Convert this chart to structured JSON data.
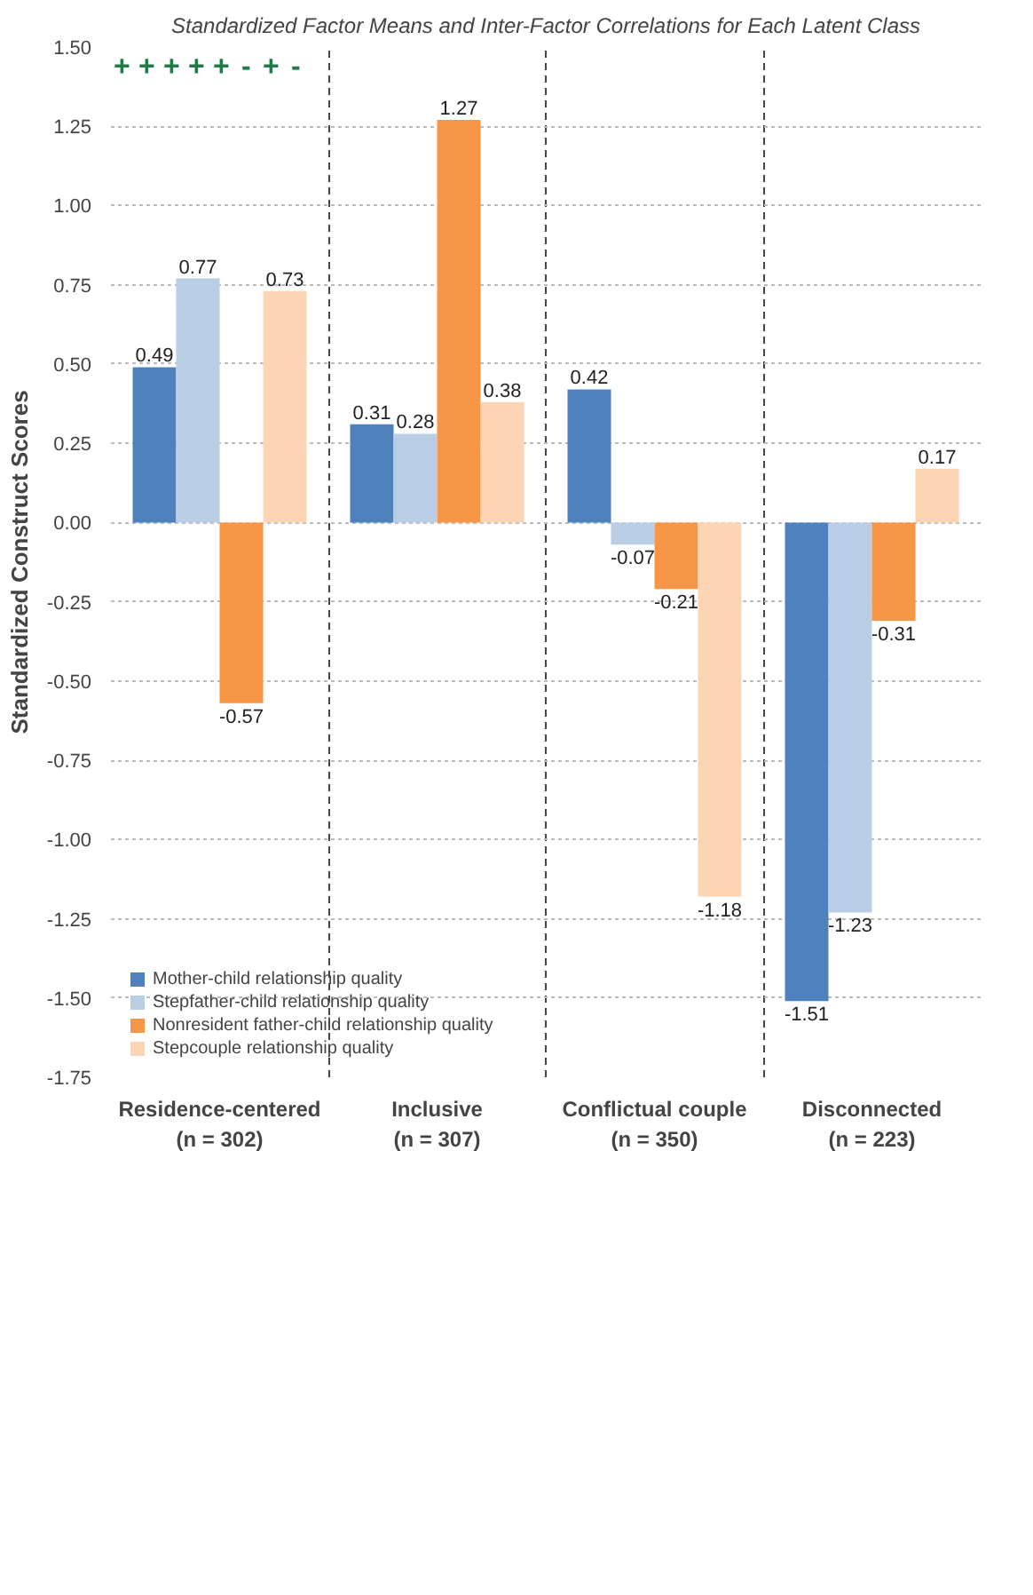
{
  "chart_data": {
    "type": "bar",
    "title": "Standardized Factor Means and Inter-Factor Correlations for Each Latent Class",
    "ylabel": "Standardized Construct Scores",
    "categories": [
      "Residence-centered (n = 302)",
      "Inclusive (n = 307)",
      "Conflictual couple (n = 350)",
      "Disconnected (n = 223)"
    ],
    "series": [
      {
        "name": "Mother-child relationship quality",
        "color": "#4f81bd",
        "values": [
          0.49,
          0.31,
          0.42,
          -1.51
        ]
      },
      {
        "name": "Stepfather-child relationship quality",
        "color": "#b9cde5",
        "values": [
          0.77,
          0.28,
          -0.07,
          -1.23
        ]
      },
      {
        "name": "Nonresident father-child relationship quality",
        "color": "#f79646",
        "values": [
          -0.57,
          1.27,
          -0.21,
          -0.31
        ]
      },
      {
        "name": "Stepcouple relationship quality",
        "color": "#fcd5b5",
        "values": [
          0.73,
          0.38,
          -1.18,
          0.17
        ]
      }
    ],
    "ylim": [
      -1.75,
      1.5
    ],
    "yticks": [
      {
        "value": -1.75,
        "label": "-1.75"
      },
      {
        "value": -1.5,
        "label": "-1.50"
      },
      {
        "value": -1.25,
        "label": "-1.25"
      },
      {
        "value": -1,
        "label": "-1.00"
      },
      {
        "value": -0.75,
        "label": "-0.75"
      },
      {
        "value": -0.5,
        "label": "-0.50"
      },
      {
        "value": -0.25,
        "label": "-0.25"
      },
      {
        "value": 0,
        "label": "0.00"
      },
      {
        "value": 0.25,
        "label": "0.25"
      },
      {
        "value": 0.5,
        "label": "0.50"
      },
      {
        "value": 0.75,
        "label": "0.75"
      },
      {
        "value": 1,
        "label": "1.00"
      },
      {
        "value": 1.25,
        "label": "1.25"
      },
      {
        "value": 1.5,
        "label": "1.50"
      }
    ],
    "data_labels": true,
    "grid": "y",
    "legend": "bottom left",
    "annotations": [
      "+",
      "+",
      "+",
      "+",
      "+",
      "-",
      "+",
      "-"
    ]
  }
}
